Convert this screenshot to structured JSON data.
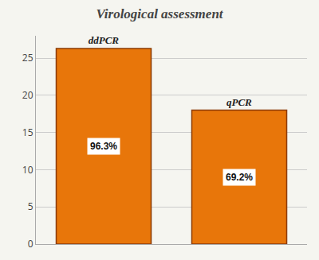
{
  "chart_data": {
    "type": "bar",
    "title": "Virological assessment",
    "categories": [
      "ddPCR",
      "qPCR"
    ],
    "values": [
      26.3,
      18.0
    ],
    "color": "#E8760A",
    "annotations": [
      "96.3%",
      "69.2%"
    ],
    "ylim": [
      0,
      28
    ],
    "yticks": [
      0,
      5,
      10,
      15,
      20,
      25
    ],
    "grid": true,
    "tick_labels": "y"
  }
}
